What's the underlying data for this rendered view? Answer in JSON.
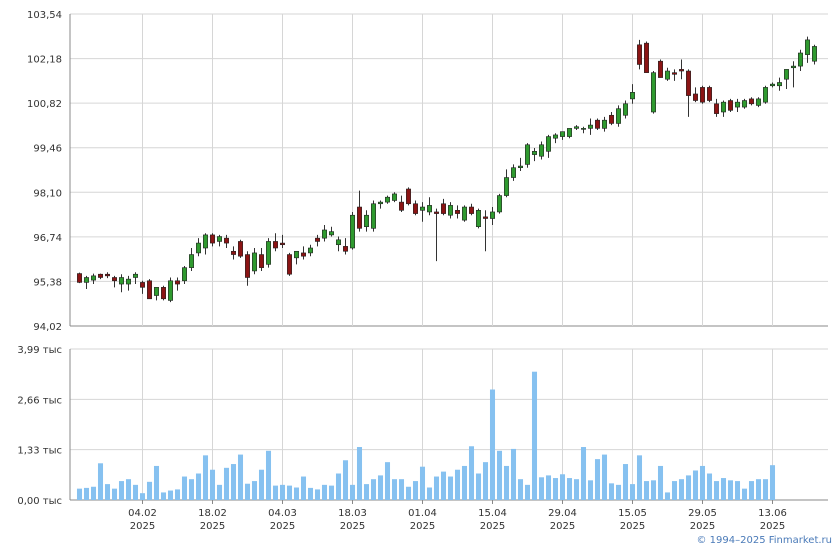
{
  "colors": {
    "up": "#2f9a2f",
    "down": "#8b1414",
    "volume": "#86c1f0",
    "grid": "#d6d6d6",
    "axis": "#888888",
    "copyright": "#4a7ab8"
  },
  "copyright": "© 1994–2025 Finmarket.ru",
  "chart_data": [
    {
      "type": "candlestick",
      "title": "",
      "ylim": [
        94.02,
        103.54
      ],
      "y_ticks": [
        "103,54",
        "102,18",
        "100,82",
        "99,46",
        "98,10",
        "96,74",
        "95,38",
        "94,02"
      ],
      "x_ticks": [
        {
          "label": "04.02",
          "year": "2025",
          "index": 9
        },
        {
          "label": "18.02",
          "year": "2025",
          "index": 19
        },
        {
          "label": "04.03",
          "year": "2025",
          "index": 29
        },
        {
          "label": "18.03",
          "year": "2025",
          "index": 39
        },
        {
          "label": "01.04",
          "year": "2025",
          "index": 49
        },
        {
          "label": "15.04",
          "year": "2025",
          "index": 59
        },
        {
          "label": "29.04",
          "year": "2025",
          "index": 69
        },
        {
          "label": "15.05",
          "year": "2025",
          "index": 79
        },
        {
          "label": "29.05",
          "year": "2025",
          "index": 89
        },
        {
          "label": "13.06",
          "year": "2025",
          "index": 99
        }
      ],
      "ohlc": [
        [
          95.62,
          95.65,
          95.33,
          95.35
        ],
        [
          95.35,
          95.55,
          95.15,
          95.5
        ],
        [
          95.42,
          95.62,
          95.3,
          95.55
        ],
        [
          95.6,
          95.62,
          95.45,
          95.5
        ],
        [
          95.6,
          95.66,
          95.48,
          95.55
        ],
        [
          95.5,
          95.55,
          95.2,
          95.4
        ],
        [
          95.3,
          95.6,
          95.05,
          95.5
        ],
        [
          95.3,
          95.55,
          95.1,
          95.45
        ],
        [
          95.5,
          95.66,
          95.3,
          95.6
        ],
        [
          95.35,
          95.4,
          95.0,
          95.2
        ],
        [
          95.4,
          95.45,
          94.85,
          94.85
        ],
        [
          94.95,
          95.2,
          94.8,
          95.2
        ],
        [
          95.2,
          95.25,
          94.8,
          94.85
        ],
        [
          94.8,
          95.5,
          94.75,
          95.4
        ],
        [
          95.4,
          95.5,
          95.1,
          95.3
        ],
        [
          95.4,
          95.85,
          95.3,
          95.8
        ],
        [
          95.8,
          96.4,
          95.7,
          96.2
        ],
        [
          96.25,
          96.7,
          96.15,
          96.55
        ],
        [
          96.4,
          96.85,
          96.2,
          96.8
        ],
        [
          96.8,
          96.85,
          96.45,
          96.55
        ],
        [
          96.6,
          96.8,
          96.45,
          96.75
        ],
        [
          96.7,
          96.8,
          96.4,
          96.55
        ],
        [
          96.3,
          96.45,
          96.05,
          96.2
        ],
        [
          96.6,
          96.65,
          96.1,
          96.15
        ],
        [
          96.2,
          96.3,
          95.25,
          95.5
        ],
        [
          95.7,
          96.4,
          95.6,
          96.25
        ],
        [
          96.2,
          96.4,
          95.7,
          95.8
        ],
        [
          95.9,
          96.7,
          95.8,
          96.6
        ],
        [
          96.6,
          96.85,
          96.3,
          96.4
        ],
        [
          96.55,
          96.8,
          96.4,
          96.5
        ],
        [
          96.2,
          96.25,
          95.55,
          95.6
        ],
        [
          96.1,
          96.3,
          95.9,
          96.3
        ],
        [
          96.25,
          96.45,
          96.05,
          96.15
        ],
        [
          96.25,
          96.5,
          96.15,
          96.4
        ],
        [
          96.7,
          96.8,
          96.45,
          96.6
        ],
        [
          96.7,
          97.1,
          96.6,
          96.95
        ],
        [
          96.8,
          97.05,
          96.75,
          96.9
        ],
        [
          96.5,
          96.75,
          96.3,
          96.65
        ],
        [
          96.45,
          96.7,
          96.2,
          96.3
        ],
        [
          96.4,
          97.5,
          96.35,
          97.4
        ],
        [
          97.65,
          98.15,
          96.9,
          97.0
        ],
        [
          97.05,
          97.55,
          96.9,
          97.4
        ],
        [
          97.0,
          97.85,
          96.9,
          97.75
        ],
        [
          97.75,
          97.85,
          97.6,
          97.8
        ],
        [
          97.8,
          98.0,
          97.75,
          97.95
        ],
        [
          97.85,
          98.1,
          97.8,
          98.05
        ],
        [
          97.8,
          98.0,
          97.5,
          97.55
        ],
        [
          98.2,
          98.25,
          97.7,
          97.75
        ],
        [
          97.75,
          97.85,
          97.4,
          97.45
        ],
        [
          97.55,
          97.8,
          97.2,
          97.65
        ],
        [
          97.5,
          97.95,
          97.4,
          97.7
        ],
        [
          97.5,
          97.6,
          96.0,
          97.45
        ],
        [
          97.75,
          97.9,
          97.4,
          97.45
        ],
        [
          97.4,
          97.8,
          97.3,
          97.7
        ],
        [
          97.55,
          97.7,
          97.3,
          97.45
        ],
        [
          97.25,
          97.7,
          97.2,
          97.65
        ],
        [
          97.65,
          97.75,
          97.4,
          97.45
        ],
        [
          97.05,
          97.6,
          97.0,
          97.55
        ],
        [
          97.35,
          97.55,
          96.3,
          97.3
        ],
        [
          97.3,
          97.65,
          97.1,
          97.5
        ],
        [
          97.5,
          98.05,
          97.45,
          98.0
        ],
        [
          98.0,
          98.8,
          97.95,
          98.55
        ],
        [
          98.55,
          98.95,
          98.45,
          98.85
        ],
        [
          98.85,
          99.15,
          98.75,
          98.9
        ],
        [
          98.95,
          99.6,
          98.85,
          99.55
        ],
        [
          99.25,
          99.45,
          99.05,
          99.35
        ],
        [
          99.2,
          99.65,
          99.1,
          99.55
        ],
        [
          99.35,
          99.85,
          99.15,
          99.8
        ],
        [
          99.75,
          99.9,
          99.6,
          99.85
        ],
        [
          99.8,
          99.95,
          99.7,
          99.95
        ],
        [
          99.8,
          100.05,
          99.75,
          100.05
        ],
        [
          100.05,
          100.15,
          100.0,
          100.1
        ],
        [
          100.05,
          100.1,
          99.9,
          100.05
        ],
        [
          100.05,
          100.35,
          99.85,
          100.15
        ],
        [
          100.3,
          100.35,
          100.0,
          100.05
        ],
        [
          100.05,
          100.4,
          99.95,
          100.3
        ],
        [
          100.45,
          100.55,
          100.15,
          100.2
        ],
        [
          100.2,
          100.75,
          100.1,
          100.65
        ],
        [
          100.45,
          100.9,
          100.35,
          100.8
        ],
        [
          100.95,
          101.4,
          100.8,
          101.15
        ],
        [
          102.6,
          102.75,
          101.85,
          102.0
        ],
        [
          102.65,
          102.7,
          101.75,
          101.75
        ],
        [
          100.55,
          101.8,
          100.5,
          101.75
        ],
        [
          102.1,
          102.15,
          101.6,
          101.6
        ],
        [
          101.55,
          101.9,
          101.5,
          101.8
        ],
        [
          101.75,
          101.85,
          101.5,
          101.7
        ],
        [
          101.85,
          102.15,
          101.55,
          101.8
        ],
        [
          101.8,
          101.85,
          100.4,
          101.05
        ],
        [
          101.1,
          101.3,
          100.85,
          100.9
        ],
        [
          101.3,
          101.35,
          100.8,
          100.85
        ],
        [
          101.3,
          101.35,
          100.85,
          100.9
        ],
        [
          100.8,
          100.95,
          100.4,
          100.5
        ],
        [
          100.55,
          100.9,
          100.4,
          100.85
        ],
        [
          100.9,
          100.95,
          100.55,
          100.6
        ],
        [
          100.7,
          100.95,
          100.55,
          100.85
        ],
        [
          100.7,
          100.95,
          100.65,
          100.9
        ],
        [
          100.95,
          101.0,
          100.75,
          100.8
        ],
        [
          100.75,
          101.0,
          100.7,
          100.95
        ],
        [
          100.85,
          101.35,
          100.8,
          101.3
        ],
        [
          101.35,
          101.45,
          101.3,
          101.4
        ],
        [
          101.35,
          101.6,
          101.2,
          101.45
        ],
        [
          101.55,
          101.85,
          101.25,
          101.85
        ],
        [
          101.9,
          102.1,
          101.3,
          101.95
        ],
        [
          101.95,
          102.45,
          101.8,
          102.35
        ],
        [
          102.3,
          102.85,
          102.05,
          102.75
        ],
        [
          102.1,
          102.6,
          102.0,
          102.55
        ]
      ]
    },
    {
      "type": "bar",
      "title": "",
      "ylim": [
        0,
        3.99
      ],
      "unit": "тыс",
      "y_ticks": [
        "3,99 тыс",
        "2,66 тыс",
        "1,33 тыс",
        "0,00 тыс"
      ],
      "values": [
        0.3,
        0.32,
        0.35,
        0.97,
        0.42,
        0.3,
        0.5,
        0.55,
        0.4,
        0.18,
        0.48,
        0.9,
        0.2,
        0.25,
        0.28,
        0.62,
        0.55,
        0.7,
        1.18,
        0.8,
        0.4,
        0.85,
        0.95,
        1.2,
        0.43,
        0.5,
        0.8,
        1.3,
        0.38,
        0.4,
        0.38,
        0.33,
        0.62,
        0.32,
        0.28,
        0.4,
        0.38,
        0.7,
        1.05,
        0.4,
        1.4,
        0.42,
        0.55,
        0.65,
        1.0,
        0.55,
        0.55,
        0.35,
        0.5,
        0.88,
        0.33,
        0.62,
        0.75,
        0.62,
        0.8,
        0.9,
        1.42,
        0.7,
        1.0,
        2.92,
        1.3,
        0.9,
        1.35,
        0.55,
        0.4,
        3.39,
        0.6,
        0.65,
        0.58,
        0.68,
        0.58,
        0.55,
        1.4,
        0.52,
        1.08,
        1.2,
        0.44,
        0.4,
        0.95,
        0.42,
        1.18,
        0.5,
        0.52,
        0.9,
        0.2,
        0.5,
        0.55,
        0.65,
        0.78,
        0.9,
        0.7,
        0.5,
        0.58,
        0.52,
        0.5,
        0.3,
        0.5,
        0.55,
        0.55,
        0.92
      ]
    }
  ]
}
